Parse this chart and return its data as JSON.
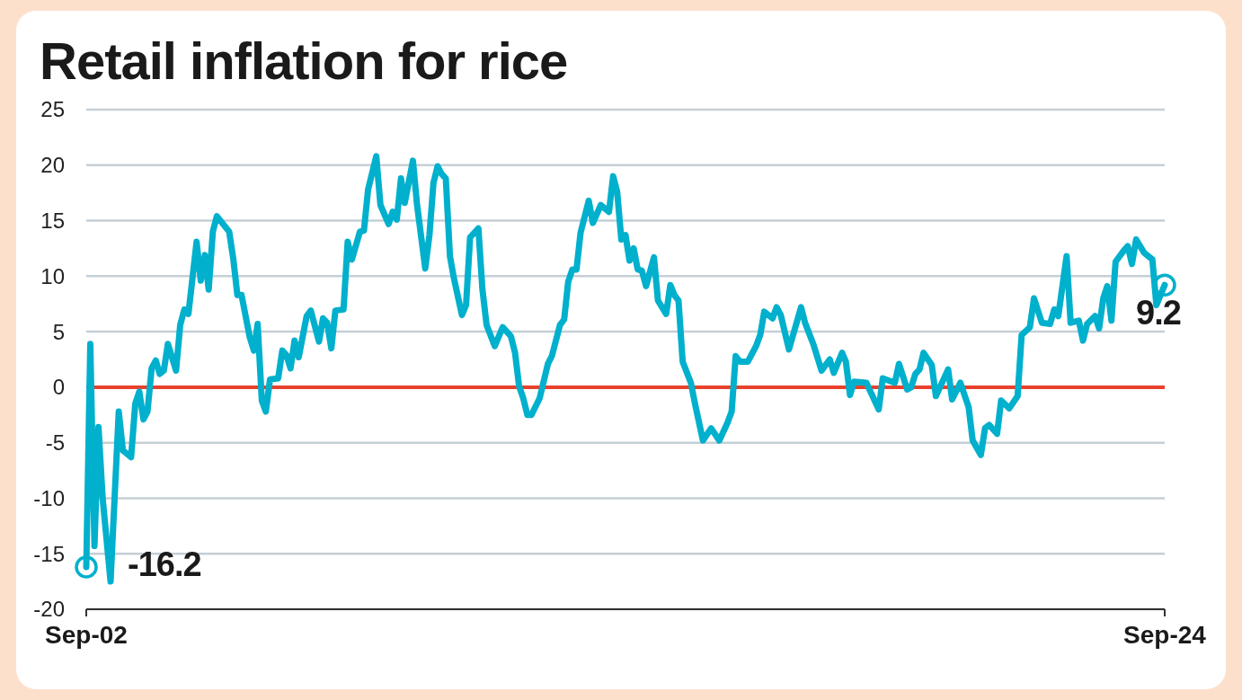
{
  "chart_data": {
    "type": "line",
    "title": "Retail inflation for rice",
    "x": [
      "2002-09",
      "2002-10",
      "2002-11",
      "2002-12",
      "2003-01",
      "2003-03",
      "2003-05",
      "2003-06",
      "2003-08",
      "2003-09",
      "2003-10",
      "2003-11",
      "2003-12",
      "2004-01",
      "2004-02",
      "2004-03",
      "2004-04",
      "2004-05",
      "2004-07",
      "2004-08",
      "2004-09",
      "2004-10",
      "2004-12",
      "2005-01",
      "2005-02",
      "2005-03",
      "2005-04",
      "2005-05",
      "2005-08",
      "2005-09",
      "2005-10",
      "2005-11",
      "2006-01",
      "2006-02",
      "2006-03",
      "2006-04",
      "2006-05",
      "2006-06",
      "2006-08",
      "2006-09",
      "2006-10",
      "2006-11",
      "2006-12",
      "2007-01",
      "2007-03",
      "2007-04",
      "2007-06",
      "2007-07",
      "2007-08",
      "2007-09",
      "2007-10",
      "2007-12",
      "2008-01",
      "2008-02",
      "2008-04",
      "2008-05",
      "2008-06",
      "2008-08",
      "2008-09",
      "2008-11",
      "2008-12",
      "2009-01",
      "2009-02",
      "2009-03",
      "2009-05",
      "2009-06",
      "2009-08",
      "2009-09",
      "2009-10",
      "2009-11",
      "2009-12",
      "2010-01",
      "2010-02",
      "2010-03",
      "2010-05",
      "2010-06",
      "2010-07",
      "2010-09",
      "2010-10",
      "2010-11",
      "2011-01",
      "2011-03",
      "2011-05",
      "2011-06",
      "2011-07",
      "2011-08",
      "2011-09",
      "2011-10",
      "2011-12",
      "2012-02",
      "2012-03",
      "2012-05",
      "2012-06",
      "2012-07",
      "2012-08",
      "2012-09",
      "2012-10",
      "2012-12",
      "2013-01",
      "2013-03",
      "2013-05",
      "2013-06",
      "2013-07",
      "2013-08",
      "2013-09",
      "2013-10",
      "2013-11",
      "2013-12",
      "2014-01",
      "2014-02",
      "2014-04",
      "2014-05",
      "2014-07",
      "2014-08",
      "2014-09",
      "2014-10",
      "2014-11",
      "2015-01",
      "2015-02",
      "2015-04",
      "2015-06",
      "2015-08",
      "2015-10",
      "2015-11",
      "2015-12",
      "2016-01",
      "2016-03",
      "2016-05",
      "2016-06",
      "2016-07",
      "2016-09",
      "2016-10",
      "2016-11",
      "2017-01",
      "2017-04",
      "2017-05",
      "2017-07",
      "2017-09",
      "2017-11",
      "2017-12",
      "2018-02",
      "2018-03",
      "2018-04",
      "2018-05",
      "2018-08",
      "2018-11",
      "2018-12",
      "2019-03",
      "2019-04",
      "2019-06",
      "2019-07",
      "2019-08",
      "2019-09",
      "2019-10",
      "2019-12",
      "2020-01",
      "2020-04",
      "2020-05",
      "2020-07",
      "2020-09",
      "2020-10",
      "2020-12",
      "2021-01",
      "2021-02",
      "2021-04",
      "2021-05",
      "2021-07",
      "2021-09",
      "2021-10",
      "2021-12",
      "2022-01",
      "2022-03",
      "2022-05",
      "2022-06",
      "2022-07",
      "2022-09",
      "2022-10",
      "2022-12",
      "2023-01",
      "2023-02",
      "2023-04",
      "2023-05",
      "2023-06",
      "2023-07",
      "2023-08",
      "2023-09",
      "2023-11",
      "2023-12",
      "2024-01",
      "2024-02",
      "2024-04",
      "2024-06",
      "2024-07",
      "2024-09"
    ],
    "series": [
      {
        "color": "#00b0cc",
        "values": [
          -16.2,
          3.9,
          -14.3,
          -3.6,
          -10,
          -17.5,
          -2.2,
          -5.7,
          -6.3,
          -1.5,
          -0.4,
          -2.9,
          -2.2,
          1.7,
          2.4,
          1.2,
          1.5,
          3.9,
          1.5,
          5.6,
          7.0,
          6.6,
          13.1,
          9.6,
          11.9,
          8.8,
          14,
          15.4,
          14,
          11.5,
          8.3,
          8.3,
          4.5,
          3.3,
          5.7,
          -1.2,
          -2.2,
          0.7,
          0.8,
          3.3,
          2.9,
          1.7,
          4.2,
          2.7,
          6.4,
          6.9,
          4.1,
          6.2,
          5.8,
          3.5,
          6.9,
          7.0,
          13.1,
          11.5,
          14,
          14.1,
          17.8,
          20.8,
          16.4,
          14.7,
          15.8,
          15.1,
          18.8,
          16.6,
          20.4,
          16.4,
          10.7,
          13.7,
          18.4,
          19.9,
          19.2,
          18.8,
          11.8,
          9.9,
          6.5,
          7.4,
          13.5,
          14.3,
          8.8,
          5.6,
          3.7,
          5.4,
          4.6,
          3.1,
          0.1,
          -1,
          -2.5,
          -2.5,
          -1,
          2.1,
          2.8,
          5.6,
          6.1,
          9.5,
          10.6,
          10.6,
          13.9,
          16.8,
          14.8,
          16.4,
          15.8,
          19,
          17.6,
          13.3,
          13.7,
          11.4,
          12.5,
          10.6,
          10.5,
          9.1,
          11.7,
          7.8,
          6.6,
          9.2,
          8.3,
          7.8,
          2.3,
          0.4,
          -1.5,
          -4.8,
          -3.7,
          -4.8,
          -3.2,
          -2.2,
          2.8,
          2.3,
          2.3,
          3.7,
          4.7,
          6.8,
          6.2,
          7.2,
          6.5,
          3.4,
          7.2,
          5.8,
          3.9,
          1.5,
          2.5,
          1.3,
          3.1,
          2.3,
          -0.7,
          0.5,
          0.4,
          -2,
          0.8,
          0.4,
          2.1,
          -0.2,
          0,
          1.2,
          1.6,
          3.1,
          2.0,
          -0.8,
          1.6,
          -1.1,
          0.4,
          -1.8,
          -4.8,
          -6.1,
          -3.7,
          -3.4,
          -4.2,
          -1.2,
          -1.9,
          -0.8,
          4.7,
          5.4,
          8.0,
          5.8,
          5.7,
          7.0,
          6.4,
          11.8,
          5.8,
          6.0,
          4.2,
          5.7,
          6.4,
          5.3,
          8.0,
          9.1,
          6.0,
          11.3,
          12.3,
          12.7,
          11.1,
          13.3,
          12.1,
          11.5,
          7.4,
          9.2
        ]
      }
    ],
    "xlim": [
      "2002-09",
      "2024-09"
    ],
    "xticks": [
      {
        "value": "2002-09",
        "label": "Sep-02"
      },
      {
        "value": "2024-09",
        "label": "Sep-24"
      }
    ],
    "ylim": [
      -20,
      25
    ],
    "yticks": [
      -20,
      -15,
      -10,
      -5,
      0,
      5,
      10,
      15,
      20,
      25
    ],
    "grid": "y",
    "marker": "none",
    "line_style": "solid",
    "ref_lines": [
      {
        "axis": "y",
        "value": 0,
        "color": "#e8412c"
      }
    ],
    "annotations": [
      {
        "text": "-16.2",
        "x": "2002-09",
        "y": -16.2
      },
      {
        "text": "9.2",
        "x": "2024-09",
        "y": 9.2
      }
    ]
  }
}
